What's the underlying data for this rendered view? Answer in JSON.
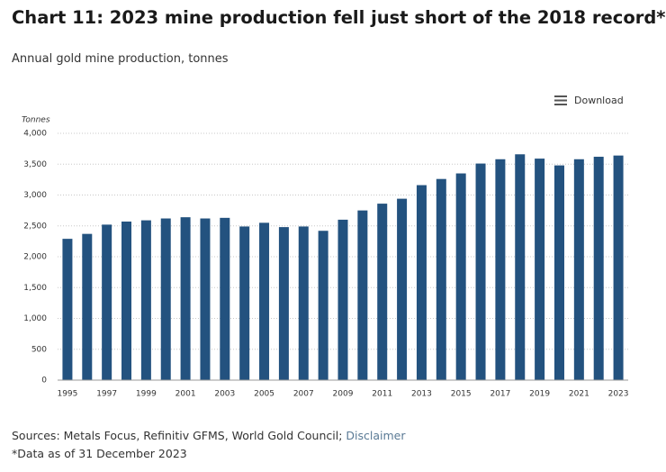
{
  "chart_data": {
    "type": "bar",
    "title": "Chart 11: 2023 mine production fell just short of the 2018 record*",
    "subtitle": "Annual gold mine production, tonnes",
    "y_label": "Tonnes",
    "categories": [
      "1995",
      null,
      "1997",
      null,
      "1999",
      null,
      "2001",
      null,
      "2003",
      null,
      "2005",
      null,
      "2007",
      null,
      "2009",
      null,
      "2011",
      null,
      "2013",
      null,
      "2015",
      null,
      "2017",
      null,
      "2019",
      null,
      "2021",
      null,
      "2023"
    ],
    "values": [
      2290,
      2370,
      2520,
      2570,
      2590,
      2620,
      2640,
      2620,
      2630,
      2490,
      2550,
      2480,
      2490,
      2420,
      2600,
      2750,
      2860,
      2940,
      3160,
      3260,
      3350,
      3510,
      3580,
      3660,
      3590,
      3480,
      3580,
      3620,
      3640
    ],
    "color": "#23527f",
    "ylim": [
      0,
      4000
    ],
    "yticks": [
      0,
      500,
      {
        "value": 1000,
        "label": "1,000"
      },
      {
        "value": 1500,
        "label": "1,500"
      },
      {
        "value": 2000,
        "label": "2,000"
      },
      {
        "value": 2500,
        "label": "2,500"
      },
      {
        "value": 3000,
        "label": "3,000"
      },
      {
        "value": 3500,
        "label": "3,500"
      },
      {
        "value": 4000,
        "label": "4,000"
      }
    ],
    "grid": true
  },
  "toolbar": {
    "download": "Download"
  },
  "footer": {
    "sources": "Sources: Metals Focus, Refinitiv GFMS, World Gold Council; ",
    "disclaimer": "Disclaimer",
    "note": "*Data as of 31 December 2023"
  }
}
